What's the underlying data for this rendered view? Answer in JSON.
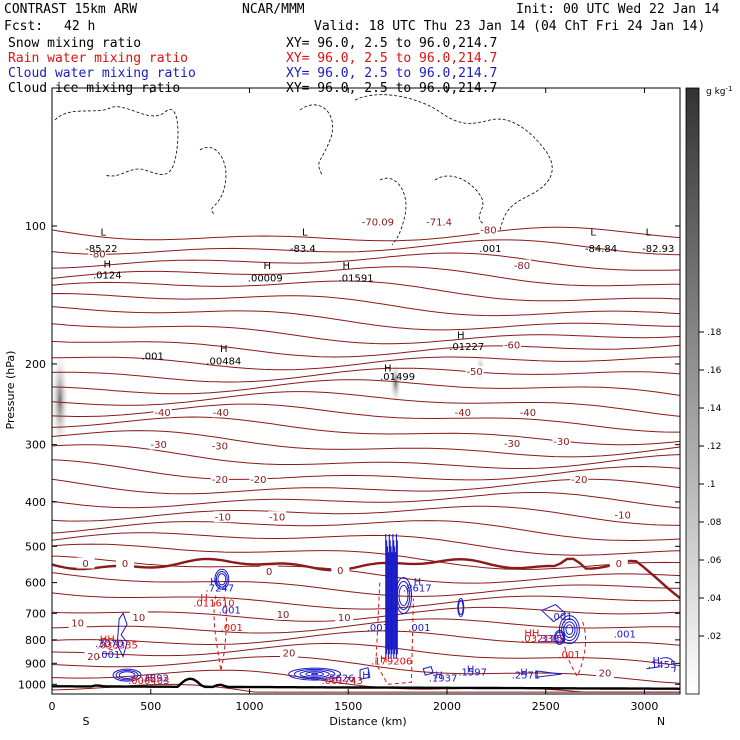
{
  "header": {
    "title": "CONTRAST 15km ARW",
    "org": "NCAR/MMM",
    "init": "Init: 00 UTC Wed 22 Jan 14",
    "fcst_label": "Fcst:",
    "fcst_value": "42 h",
    "valid": "Valid: 18 UTC Thu 23 Jan 14 (04 ChT Fri 24 Jan 14)"
  },
  "fields": [
    {
      "name": "Snow mixing ratio",
      "xy": "XY=  96.0,  2.5 to  96.0,214.7",
      "color": "#000000"
    },
    {
      "name": "Rain water mixing ratio",
      "xy": "XY=  96.0,  2.5 to  96.0,214.7",
      "color": "#dd1111"
    },
    {
      "name": "Cloud water mixing ratio",
      "xy": "XY=  96.0,  2.5 to  96.0,214.7",
      "color": "#1a1ac8"
    },
    {
      "name": "Cloud ice mixing ratio",
      "xy": "XY=  96.0,  2.5 to  96.0,214.7",
      "color": "#000000"
    }
  ],
  "colors": {
    "temperature": "#8b1a1a",
    "rain": "#dd1111",
    "cloud_water": "#1a1ac8",
    "terrain": "#000000",
    "snow_shading": "#444444"
  },
  "chart_data": {
    "type": "contour cross-section",
    "xlabel": "Distance (km)",
    "ylabel": "Pressure (hPa)",
    "x_ticks": [
      "0",
      "500",
      "1000",
      "1500",
      "2000",
      "2500",
      "3000"
    ],
    "y_ticks": [
      "100",
      "200",
      "300",
      "400",
      "500",
      "600",
      "700",
      "800",
      "900",
      "1000"
    ],
    "xlim": [
      0,
      3180
    ],
    "ylim": [
      1050,
      50
    ],
    "y_scale": "log",
    "left_end_label": "S",
    "right_end_label": "N",
    "colorbar": {
      "unit_text": "g kg",
      "unit_sup": "-1",
      "ticks": [
        ".02",
        ".04",
        ".06",
        ".08",
        ".1",
        ".12",
        ".14",
        ".16",
        ".18"
      ]
    },
    "temperature_contour_labels": [
      {
        "x": 230,
        "p": 115,
        "text": "-80"
      },
      {
        "x": 2210,
        "p": 102,
        "text": "-80"
      },
      {
        "x": 2380,
        "p": 122,
        "text": "-80"
      },
      {
        "x": 2330,
        "p": 182,
        "text": "-60"
      },
      {
        "x": 2140,
        "p": 208,
        "text": "-50"
      },
      {
        "x": 560,
        "p": 255,
        "text": "-40"
      },
      {
        "x": 855,
        "p": 255,
        "text": "-40"
      },
      {
        "x": 2080,
        "p": 255,
        "text": "-40"
      },
      {
        "x": 2410,
        "p": 255,
        "text": "-40"
      },
      {
        "x": 540,
        "p": 300,
        "text": "-30"
      },
      {
        "x": 850,
        "p": 302,
        "text": "-30"
      },
      {
        "x": 2330,
        "p": 298,
        "text": "-30"
      },
      {
        "x": 2580,
        "p": 295,
        "text": "-30"
      },
      {
        "x": 850,
        "p": 357,
        "text": "-20"
      },
      {
        "x": 1045,
        "p": 357,
        "text": "-20"
      },
      {
        "x": 2670,
        "p": 357,
        "text": "-20"
      },
      {
        "x": 865,
        "p": 432,
        "text": "-10"
      },
      {
        "x": 1140,
        "p": 432,
        "text": "-10"
      },
      {
        "x": 2890,
        "p": 427,
        "text": "-10"
      },
      {
        "x": 170,
        "p": 545,
        "text": "0"
      },
      {
        "x": 370,
        "p": 545,
        "text": "0"
      },
      {
        "x": 1100,
        "p": 568,
        "text": "0"
      },
      {
        "x": 1460,
        "p": 565,
        "text": "0"
      },
      {
        "x": 2870,
        "p": 545,
        "text": "0"
      },
      {
        "x": 130,
        "p": 735,
        "text": "10"
      },
      {
        "x": 440,
        "p": 715,
        "text": "10"
      },
      {
        "x": 1170,
        "p": 705,
        "text": "10"
      },
      {
        "x": 1480,
        "p": 715,
        "text": "10"
      },
      {
        "x": 210,
        "p": 870,
        "text": "20"
      },
      {
        "x": 1200,
        "p": 855,
        "text": "20"
      },
      {
        "x": 2800,
        "p": 945,
        "text": "20"
      }
    ],
    "extrema_labels": [
      {
        "x": 260,
        "p": 103,
        "text": "L",
        "color": "#000000"
      },
      {
        "x": 250,
        "p": 112,
        "text": "-85.22",
        "color": "#000000"
      },
      {
        "x": 280,
        "p": 121,
        "text": "H",
        "color": "#000000"
      },
      {
        "x": 280,
        "p": 128,
        "text": ".0124",
        "color": "#000000"
      },
      {
        "x": 1280,
        "p": 103,
        "text": "L",
        "color": "#000000"
      },
      {
        "x": 1270,
        "p": 112,
        "text": "-83.4",
        "color": "#000000"
      },
      {
        "x": 1090,
        "p": 122,
        "text": "H",
        "color": "#000000"
      },
      {
        "x": 1080,
        "p": 130,
        "text": ".00009",
        "color": "#000000"
      },
      {
        "x": 1490,
        "p": 122,
        "text": "H",
        "color": "#000000"
      },
      {
        "x": 1540,
        "p": 130,
        "text": ".01591",
        "color": "#000000"
      },
      {
        "x": 870,
        "p": 185,
        "text": "H",
        "color": "#000000"
      },
      {
        "x": 870,
        "p": 197,
        "text": ".00484",
        "color": "#000000"
      },
      {
        "x": 2070,
        "p": 173,
        "text": "H",
        "color": "#000000"
      },
      {
        "x": 2100,
        "p": 183,
        "text": ".01227",
        "color": "#000000"
      },
      {
        "x": 1700,
        "p": 204,
        "text": "H",
        "color": "#000000"
      },
      {
        "x": 1750,
        "p": 213,
        "text": ".01499",
        "color": "#000000"
      },
      {
        "x": 2740,
        "p": 103,
        "text": "L",
        "color": "#000000"
      },
      {
        "x": 2780,
        "p": 112,
        "text": "-84.84",
        "color": "#000000"
      },
      {
        "x": 3020,
        "p": 103,
        "text": "L",
        "color": "#000000"
      },
      {
        "x": 3070,
        "p": 112,
        "text": "-82.93",
        "color": "#000000"
      },
      {
        "x": 1650,
        "p": 98,
        "text": "-70.09",
        "color": "#8b1a1a"
      },
      {
        "x": 1960,
        "p": 98,
        "text": "-71.4",
        "color": "#8b1a1a"
      },
      {
        "x": 2220,
        "p": 112,
        "text": ".001",
        "color": "#000000"
      },
      {
        "x": 510,
        "p": 192,
        "text": ".001",
        "color": "#000000"
      },
      {
        "x": 820,
        "p": 597,
        "text": "H",
        "color": "#1a1ac8"
      },
      {
        "x": 850,
        "p": 617,
        "text": ".7247",
        "color": "#1a1ac8"
      },
      {
        "x": 770,
        "p": 647,
        "text": "H",
        "color": "#dd1111"
      },
      {
        "x": 820,
        "p": 665,
        "text": ".011610",
        "color": "#dd1111"
      },
      {
        "x": 900,
        "p": 688,
        "text": ".001",
        "color": "#1a1ac8"
      },
      {
        "x": 910,
        "p": 752,
        "text": ".001",
        "color": "#dd1111"
      },
      {
        "x": 1850,
        "p": 597,
        "text": "H",
        "color": "#1a1ac8"
      },
      {
        "x": 1850,
        "p": 617,
        "text": ".8617",
        "color": "#1a1ac8"
      },
      {
        "x": 1650,
        "p": 752,
        "text": ".001",
        "color": "#1a1ac8"
      },
      {
        "x": 1860,
        "p": 752,
        "text": ".001",
        "color": "#1a1ac8"
      },
      {
        "x": 1680,
        "p": 880,
        "text": "H",
        "color": "#dd1111"
      },
      {
        "x": 1720,
        "p": 890,
        "text": ".179206",
        "color": "#dd1111"
      },
      {
        "x": 280,
        "p": 797,
        "text": "HH",
        "color": "#dd1111"
      },
      {
        "x": 330,
        "p": 820,
        "text": ".033335",
        "color": "#dd1111"
      },
      {
        "x": 290,
        "p": 815,
        "text": ".3070",
        "color": "#1a1ac8"
      },
      {
        "x": 290,
        "p": 862,
        "text": ".001",
        "color": "#1a1ac8"
      },
      {
        "x": 2430,
        "p": 772,
        "text": "HH",
        "color": "#dd1111"
      },
      {
        "x": 2480,
        "p": 795,
        "text": ".032115",
        "color": "#dd1111"
      },
      {
        "x": 2530,
        "p": 795,
        "text": ".3333",
        "color": "#1a1ac8"
      },
      {
        "x": 2580,
        "p": 712,
        "text": ".001",
        "color": "#1a1ac8"
      },
      {
        "x": 2620,
        "p": 860,
        "text": ".001",
        "color": "#dd1111"
      },
      {
        "x": 2900,
        "p": 777,
        "text": ".001",
        "color": "#1a1ac8"
      },
      {
        "x": 1590,
        "p": 955,
        "text": "H",
        "color": "#1a1ac8"
      },
      {
        "x": 1460,
        "p": 968,
        "text": ".5626",
        "color": "#1a1ac8"
      },
      {
        "x": 1470,
        "p": 980,
        "text": ".001743",
        "color": "#dd1111"
      },
      {
        "x": 490,
        "p": 968,
        "text": "H",
        "color": "#dd1111"
      },
      {
        "x": 520,
        "p": 968,
        "text": ".3892",
        "color": "#1a1ac8"
      },
      {
        "x": 490,
        "p": 980,
        "text": ".000403",
        "color": "#dd1111"
      },
      {
        "x": 1960,
        "p": 955,
        "text": "H",
        "color": "#1a1ac8"
      },
      {
        "x": 1980,
        "p": 968,
        "text": ".1937",
        "color": "#1a1ac8"
      },
      {
        "x": 2120,
        "p": 925,
        "text": "H",
        "color": "#1a1ac8"
      },
      {
        "x": 2130,
        "p": 940,
        "text": ".1597",
        "color": "#1a1ac8"
      },
      {
        "x": 2390,
        "p": 940,
        "text": "H",
        "color": "#1a1ac8"
      },
      {
        "x": 2400,
        "p": 955,
        "text": ".2571",
        "color": "#1a1ac8"
      },
      {
        "x": 3060,
        "p": 887,
        "text": "H",
        "color": "#1a1ac8"
      },
      {
        "x": 3090,
        "p": 905,
        "text": ".1455",
        "color": "#1a1ac8"
      }
    ]
  }
}
